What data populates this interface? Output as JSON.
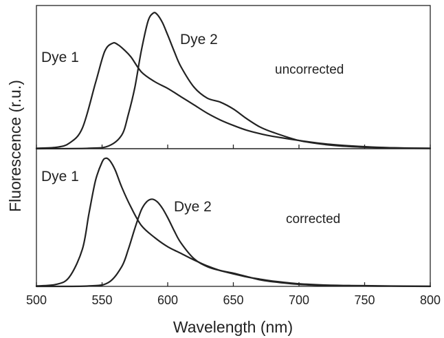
{
  "chart_data": {
    "type": "line",
    "xlabel": "Wavelength (nm)",
    "ylabel": "Fluorescence (r.u.)",
    "xlim": [
      500,
      800
    ],
    "x_ticks": [
      500,
      550,
      600,
      650,
      700,
      750,
      800
    ],
    "panels": [
      {
        "annotation": "uncorrected",
        "ylim": [
          0,
          1
        ],
        "series": [
          {
            "name": "Dye 1",
            "x": [
              500,
              515,
              525,
              535,
              545,
              552,
              558,
              562,
              567,
              572,
              580,
              590,
              600,
              610,
              620,
              630,
              640,
              650,
              660,
              670,
              680,
              700,
              720,
              740,
              760,
              780,
              800
            ],
            "values": [
              0.003,
              0.01,
              0.04,
              0.15,
              0.48,
              0.71,
              0.77,
              0.76,
              0.72,
              0.67,
              0.56,
              0.49,
              0.44,
              0.38,
              0.32,
              0.26,
              0.21,
              0.17,
              0.135,
              0.11,
              0.09,
              0.06,
              0.035,
              0.02,
              0.01,
              0.005,
              0.003
            ]
          },
          {
            "name": "Dye 2",
            "x": [
              500,
              540,
              555,
              565,
              570,
              575,
              580,
              585,
              589,
              592,
              596,
              600,
              605,
              610,
              620,
              630,
              640,
              650,
              660,
              670,
              680,
              700,
              720,
              740,
              760,
              780,
              800
            ],
            "values": [
              0.0,
              0.003,
              0.02,
              0.1,
              0.25,
              0.45,
              0.72,
              0.93,
              0.99,
              0.98,
              0.92,
              0.83,
              0.71,
              0.6,
              0.45,
              0.37,
              0.34,
              0.29,
              0.22,
              0.16,
              0.12,
              0.06,
              0.03,
              0.015,
              0.008,
              0.004,
              0.002
            ]
          }
        ]
      },
      {
        "annotation": "corrected",
        "ylim": [
          0,
          1
        ],
        "series": [
          {
            "name": "Dye 1",
            "x": [
              500,
              515,
              525,
              535,
              540,
              545,
              550,
              553,
              556,
              560,
              565,
              572,
              580,
              590,
              600,
              610,
              620,
              630,
              640,
              650,
              660,
              670,
              680,
              700,
              720,
              740,
              760,
              780,
              800
            ],
            "values": [
              0.003,
              0.015,
              0.07,
              0.28,
              0.55,
              0.8,
              0.94,
              0.97,
              0.95,
              0.88,
              0.75,
              0.6,
              0.46,
              0.37,
              0.3,
              0.25,
              0.2,
              0.155,
              0.12,
              0.095,
              0.072,
              0.055,
              0.04,
              0.02,
              0.01,
              0.006,
              0.004,
              0.002,
              0.001
            ]
          },
          {
            "name": "Dye 2",
            "x": [
              500,
              540,
              555,
              565,
              570,
              575,
              580,
              584,
              588,
              592,
              596,
              600,
              605,
              610,
              620,
              630,
              640,
              650,
              660,
              670,
              680,
              700,
              720,
              740,
              760,
              780,
              800
            ],
            "values": [
              0.0,
              0.003,
              0.03,
              0.15,
              0.28,
              0.44,
              0.58,
              0.64,
              0.66,
              0.64,
              0.59,
              0.52,
              0.42,
              0.33,
              0.21,
              0.15,
              0.12,
              0.1,
              0.075,
              0.05,
              0.035,
              0.015,
              0.007,
              0.004,
              0.002,
              0.001,
              0.0
            ]
          }
        ]
      }
    ]
  }
}
